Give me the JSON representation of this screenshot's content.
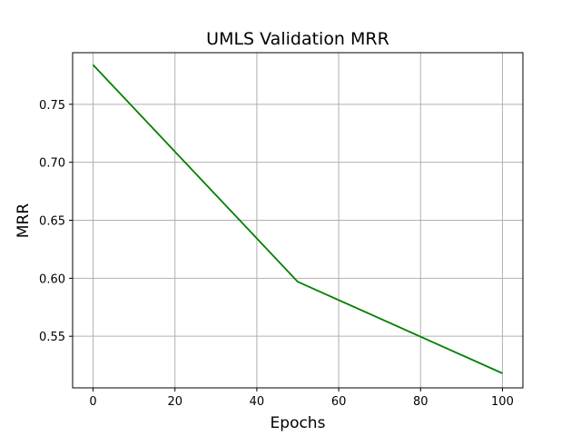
{
  "chart_data": {
    "type": "line",
    "title": "UMLS Validation MRR",
    "xlabel": "Epochs",
    "ylabel": "MRR",
    "xlim": [
      -5,
      105
    ],
    "ylim": [
      0.5055,
      0.7945
    ],
    "x_ticks": [
      0,
      20,
      40,
      60,
      80,
      100
    ],
    "y_ticks": [
      0.55,
      0.6,
      0.65,
      0.7,
      0.75
    ],
    "x_tick_labels": [
      "0",
      "20",
      "40",
      "60",
      "80",
      "100"
    ],
    "y_tick_labels": [
      "0.55",
      "0.60",
      "0.65",
      "0.70",
      "0.75"
    ],
    "grid": true,
    "series": [
      {
        "color": "#008000",
        "x": [
          0,
          50,
          100
        ],
        "y": [
          0.784,
          0.597,
          0.518
        ]
      }
    ]
  }
}
